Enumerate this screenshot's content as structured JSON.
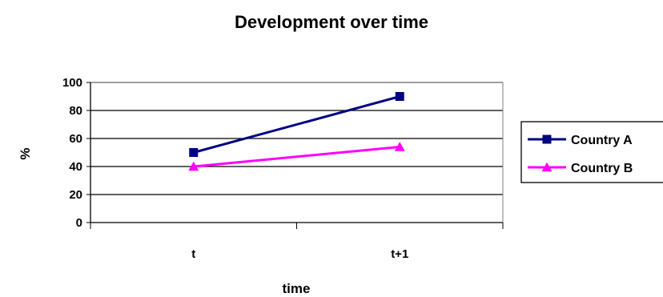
{
  "chart_data": {
    "type": "line",
    "title": "Development over time",
    "xlabel": "time",
    "ylabel": "%",
    "categories": [
      "t",
      "t+1"
    ],
    "ylim": [
      0,
      100
    ],
    "yticks": [
      0,
      20,
      40,
      60,
      80,
      100
    ],
    "grid": true,
    "legend_position": "right",
    "series": [
      {
        "name": "Country A",
        "values": [
          50,
          90
        ],
        "color": "#000080",
        "marker": "square"
      },
      {
        "name": "Country B",
        "values": [
          40,
          54
        ],
        "color": "#ff00ff",
        "marker": "triangle"
      }
    ]
  }
}
